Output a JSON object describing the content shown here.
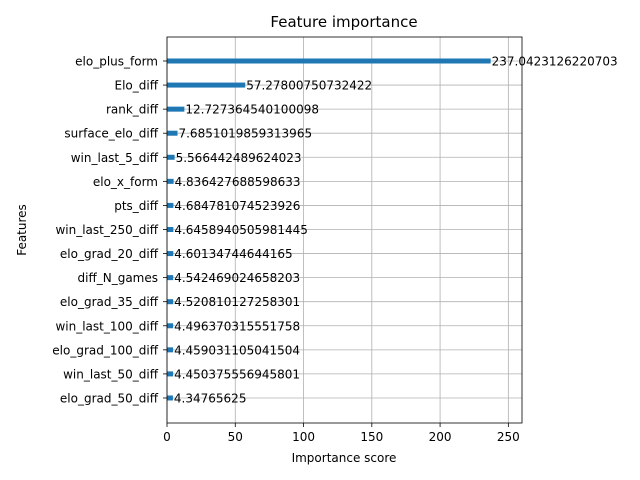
{
  "chart_data": {
    "type": "bar",
    "orientation": "horizontal",
    "title": "Feature importance",
    "xlabel": "Importance score",
    "ylabel": "Features",
    "xlim": [
      0,
      260
    ],
    "xticks": [
      0,
      50,
      100,
      150,
      200,
      250
    ],
    "grid": true,
    "bar_color": "#1f77b4",
    "categories": [
      "elo_plus_form",
      "Elo_diff",
      "rank_diff",
      "surface_elo_diff",
      "win_last_5_diff",
      "elo_x_form",
      "pts_diff",
      "win_last_250_diff",
      "elo_grad_20_diff",
      "diff_N_games",
      "elo_grad_35_diff",
      "win_last_100_diff",
      "elo_grad_100_diff",
      "win_last_50_diff",
      "elo_grad_50_diff"
    ],
    "values": [
      237.0423126220703,
      57.27800750732422,
      12.727364540100098,
      7.6851019859313965,
      5.566442489624023,
      4.836427688598633,
      4.684781074523926,
      4.6458940505981445,
      4.60134744644165,
      4.542469024658203,
      4.520810127258301,
      4.496370315551758,
      4.459031105041504,
      4.450375556945801,
      4.34765625
    ],
    "value_labels": [
      "237.0423126220703",
      "57.27800750732422",
      "12.727364540100098",
      "7.6851019859313965",
      "5.566442489624023",
      "4.836427688598633",
      "4.684781074523926",
      "4.6458940505981445",
      "4.60134744644165",
      "4.542469024658203",
      "4.520810127258301",
      "4.496370315551758",
      "4.459031105041504",
      "4.450375556945801",
      "4.34765625"
    ]
  }
}
